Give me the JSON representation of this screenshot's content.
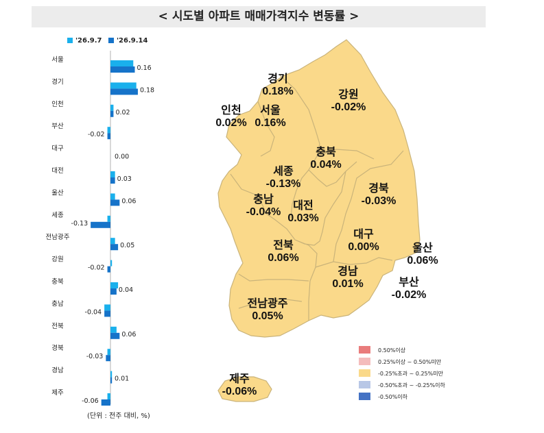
{
  "title": "< 시도별 아파트 매매가격지수 변동률 >",
  "unit_note": "(단위 : 전주 대비, %)",
  "colors": {
    "prev_week": "#1ab0ec",
    "this_week": "#1673c9",
    "map_fill": "#fad98a",
    "map_stroke": "#bfa86a"
  },
  "chart_data": {
    "type": "bar",
    "orientation": "horizontal",
    "categories": [
      "서울",
      "경기",
      "인천",
      "부산",
      "대구",
      "대전",
      "울산",
      "세종",
      "전남광주",
      "강원",
      "충북",
      "충남",
      "전북",
      "경북",
      "경남",
      "제주"
    ],
    "series": [
      {
        "name": "'26.9.7",
        "values": [
          0.15,
          0.17,
          0.02,
          -0.02,
          0.0,
          0.03,
          0.03,
          -0.02,
          0.03,
          0.01,
          0.05,
          -0.04,
          0.04,
          -0.02,
          0.01,
          -0.02
        ]
      },
      {
        "name": "'26.9.14",
        "values": [
          0.16,
          0.18,
          0.02,
          -0.02,
          0.0,
          0.03,
          0.06,
          -0.13,
          0.05,
          -0.02,
          0.04,
          -0.04,
          0.06,
          -0.03,
          0.01,
          -0.06
        ]
      }
    ],
    "value_labels": [
      "0.16",
      "0.18",
      "0.02",
      "-0.02",
      "0.00",
      "0.03",
      "0.06",
      "-0.13",
      "0.05",
      "-0.02",
      "0.04",
      "-0.04",
      "0.06",
      "-0.03",
      "0.01",
      "-0.06"
    ]
  },
  "map": {
    "regions": [
      {
        "name": "경기",
        "value": "0.18%"
      },
      {
        "name": "인천",
        "value": "0.02%"
      },
      {
        "name": "서울",
        "value": "0.16%"
      },
      {
        "name": "강원",
        "value": "-0.02%"
      },
      {
        "name": "충북",
        "value": "0.04%"
      },
      {
        "name": "세종",
        "value": "-0.13%"
      },
      {
        "name": "충남",
        "value": "-0.04%"
      },
      {
        "name": "대전",
        "value": "0.03%"
      },
      {
        "name": "경북",
        "value": "-0.03%"
      },
      {
        "name": "대구",
        "value": "0.00%"
      },
      {
        "name": "전북",
        "value": "0.06%"
      },
      {
        "name": "울산",
        "value": "0.06%"
      },
      {
        "name": "경남",
        "value": "0.01%"
      },
      {
        "name": "부산",
        "value": "-0.02%"
      },
      {
        "name": "전남광주",
        "value": "0.05%"
      },
      {
        "name": "제주",
        "value": "-0.06%"
      }
    ],
    "legend": [
      {
        "label": "0.50%이상",
        "color": "#e97c7c"
      },
      {
        "label": "0.25%이상 ~ 0.50%미만",
        "color": "#f4bcbc"
      },
      {
        "label": "-0.25%초과 ~ 0.25%미만",
        "color": "#fad98a"
      },
      {
        "label": "-0.50%초과 ~ -0.25%이하",
        "color": "#b8c7e6"
      },
      {
        "label": "-0.50%이하",
        "color": "#4472c4"
      }
    ]
  }
}
